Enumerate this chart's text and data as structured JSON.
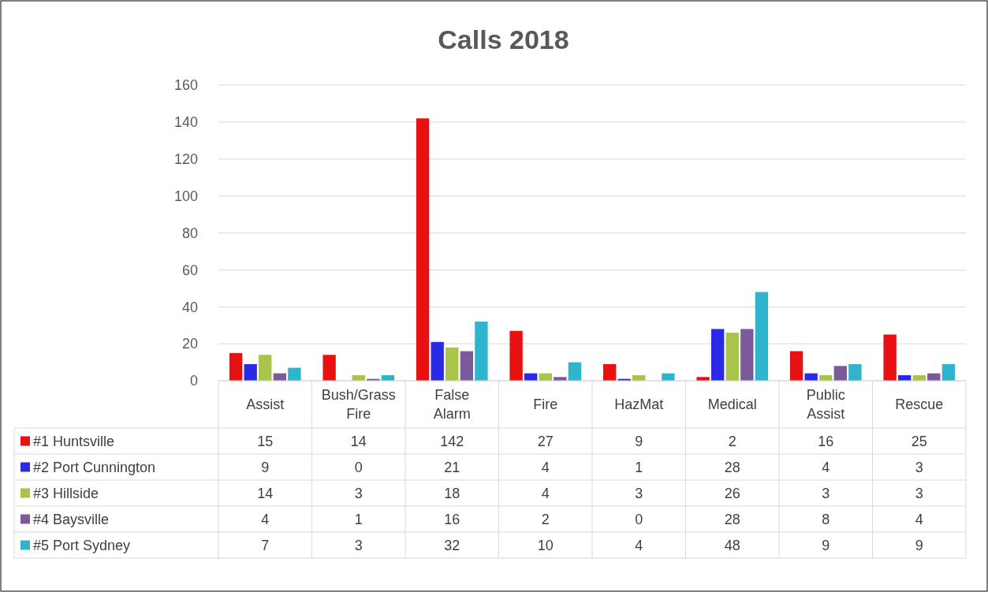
{
  "chart_data": {
    "type": "bar",
    "title": "Calls 2018",
    "categories": [
      "Assist",
      "Bush/Grass Fire",
      "False Alarm",
      "Fire",
      "HazMat",
      "Medical",
      "Public Assist",
      "Rescue"
    ],
    "series": [
      {
        "name": "#1 Huntsville",
        "color": "#e81010",
        "values": [
          15,
          14,
          142,
          27,
          9,
          2,
          16,
          25
        ]
      },
      {
        "name": "#2 Port Cunnington",
        "color": "#2a2ae6",
        "values": [
          9,
          0,
          21,
          4,
          1,
          28,
          4,
          3
        ]
      },
      {
        "name": "#3 Hillside",
        "color": "#a8c44a",
        "values": [
          14,
          3,
          18,
          4,
          3,
          26,
          3,
          3
        ]
      },
      {
        "name": "#4 Baysville",
        "color": "#7b5a9c",
        "values": [
          4,
          1,
          16,
          2,
          0,
          28,
          8,
          4
        ]
      },
      {
        "name": "#5 Port Sydney",
        "color": "#2eb4cc",
        "values": [
          7,
          3,
          32,
          10,
          4,
          48,
          9,
          9
        ]
      }
    ],
    "ylim": [
      0,
      160
    ],
    "yticks": [
      0,
      20,
      40,
      60,
      80,
      100,
      120,
      140,
      160
    ],
    "grid": "y",
    "legend": "bottom",
    "data_labels": true
  }
}
